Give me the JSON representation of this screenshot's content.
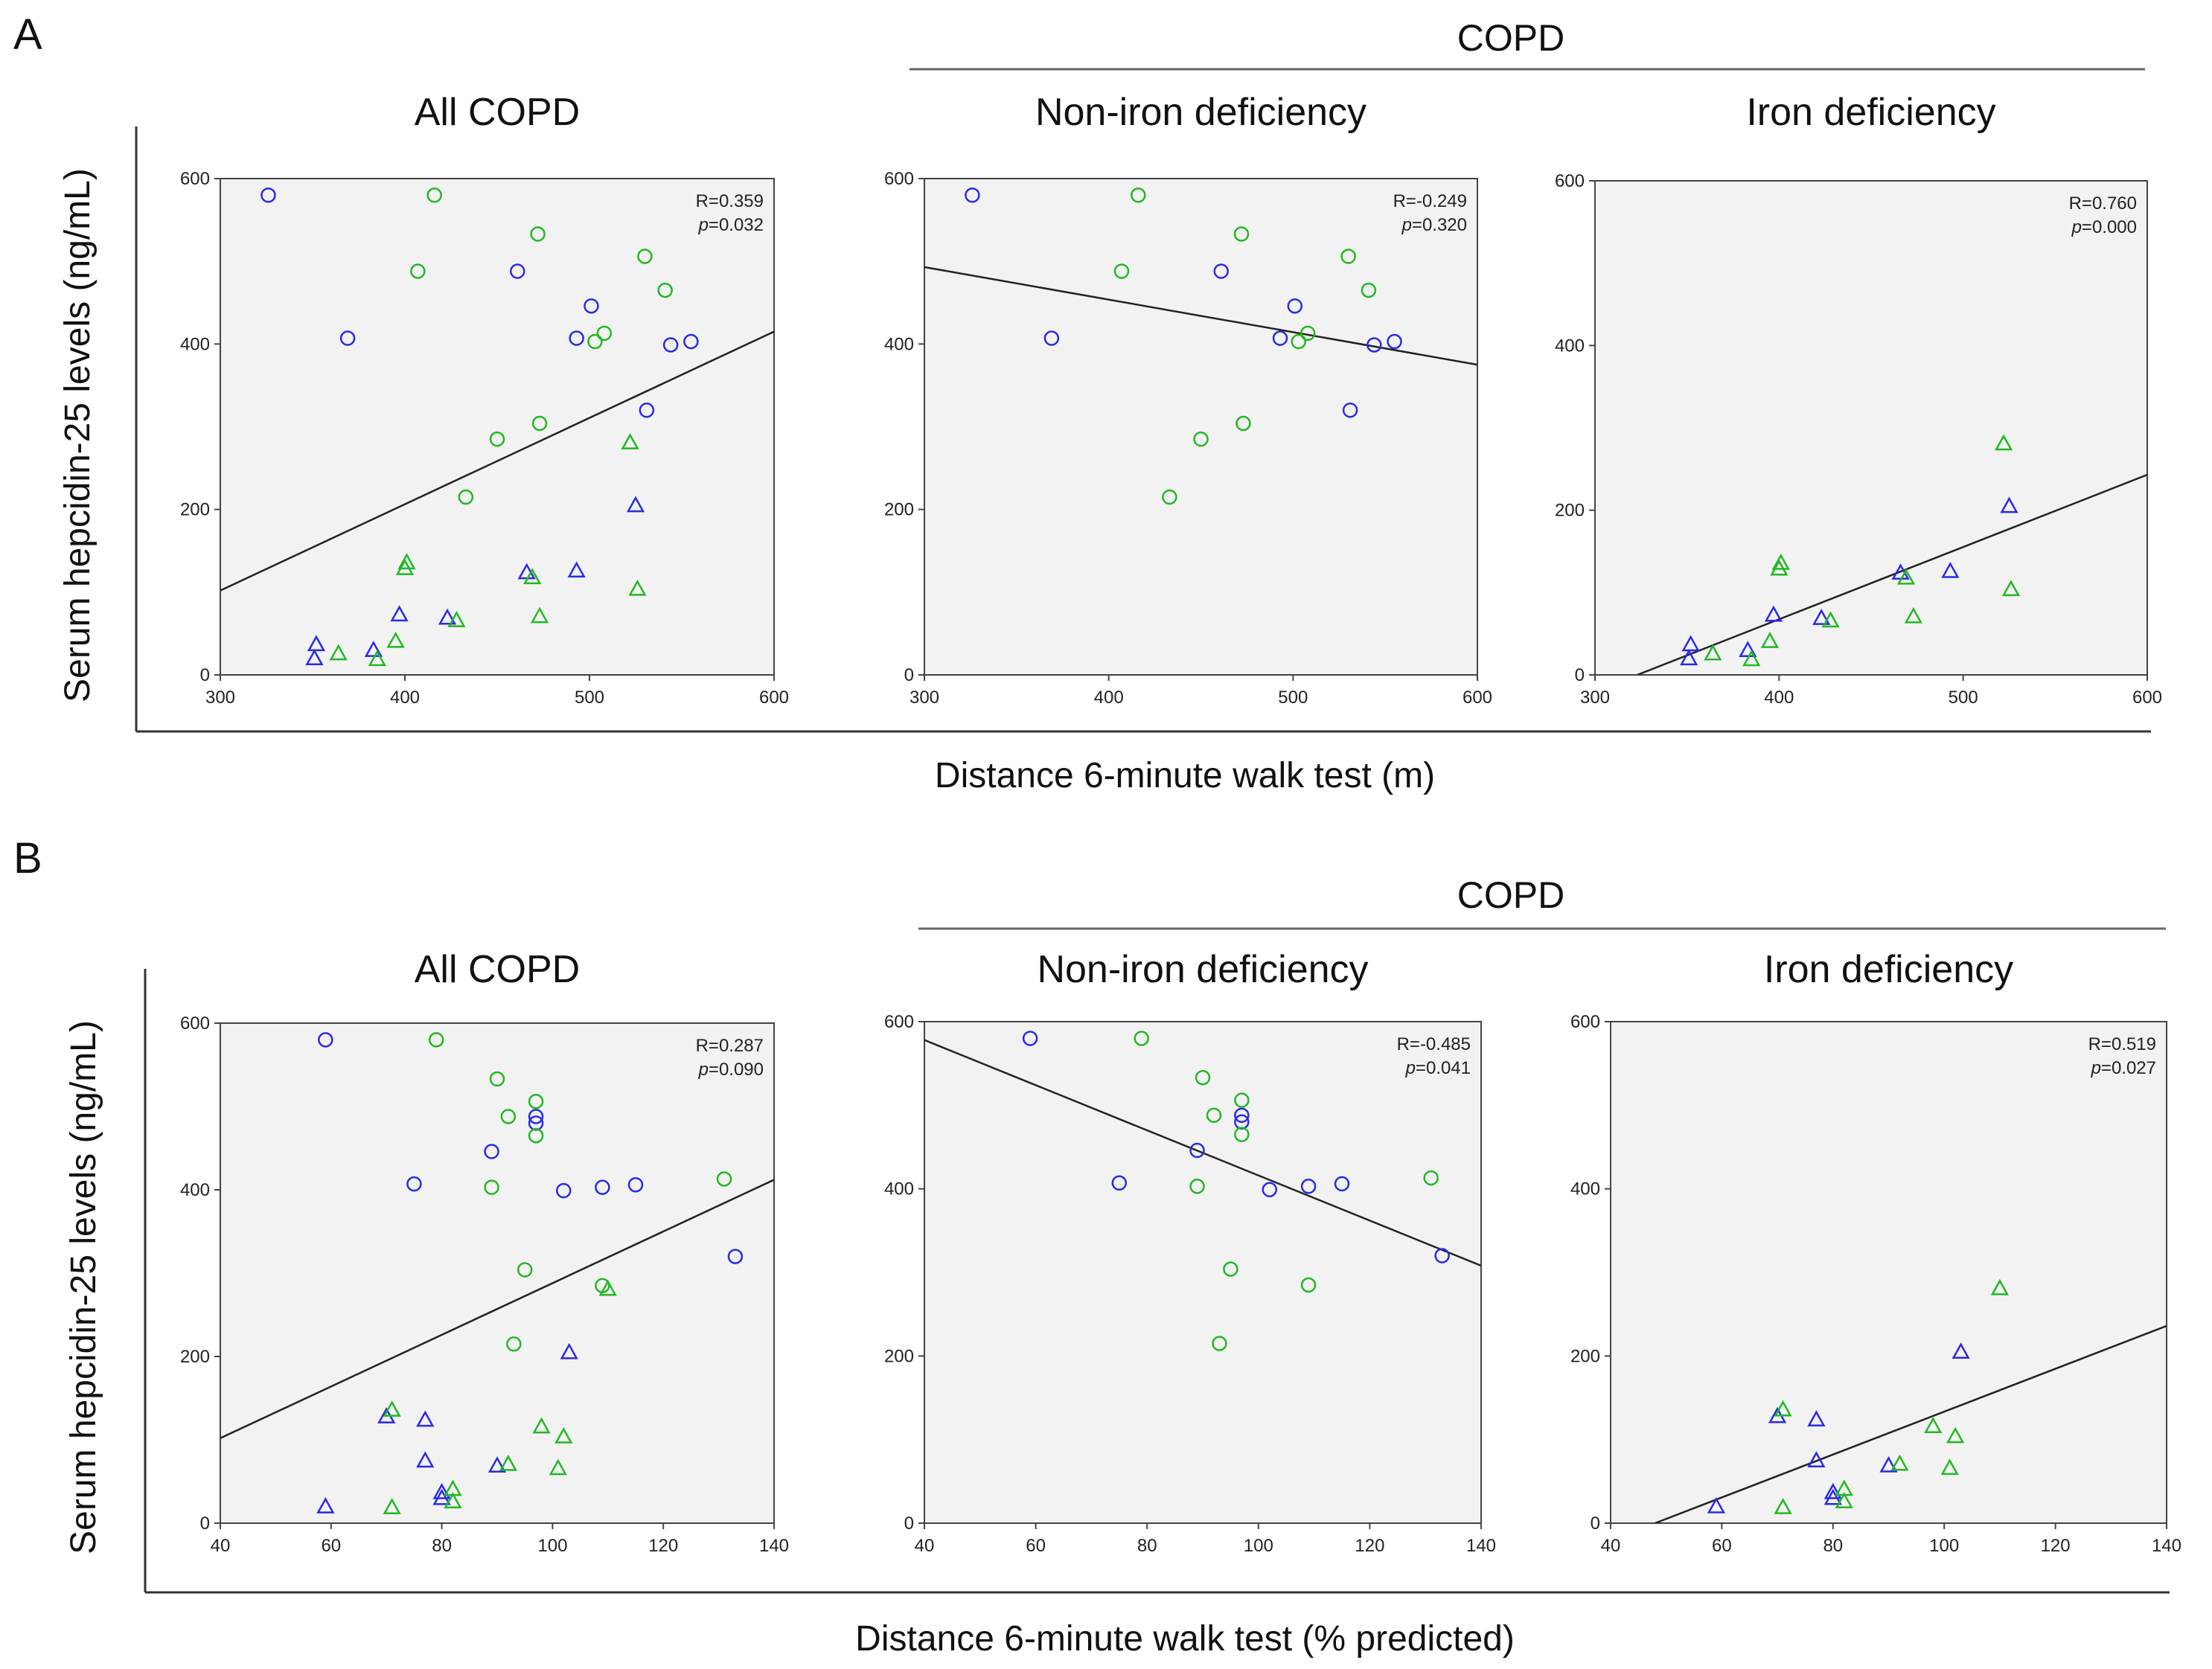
{
  "figure": {
    "panel_labels": [
      "A",
      "B"
    ],
    "group_label": "COPD",
    "ylabel": "Serum hepcidin-25 levels (ng/mL)",
    "colors": {
      "circle_blue": "#2a2ae6",
      "circle_green": "#22b822",
      "plot_bg": "#f2f2f2",
      "line": "#222222"
    }
  },
  "chart_data": [
    {
      "type": "scatter",
      "row": "A",
      "title": "All COPD",
      "xlabel": "Distance 6-minute walk test (m)",
      "ylabel": "Serum hepcidin-25 levels (ng/mL)",
      "xlim": [
        300,
        600
      ],
      "ylim": [
        0,
        600
      ],
      "xticks": [
        "300",
        "400",
        "500",
        "600"
      ],
      "yticks": [
        "0",
        "200",
        "400",
        "600"
      ],
      "stats": {
        "r": "R=0.359",
        "p_label": "p",
        "p_value": "=0.032"
      },
      "fit_line": [
        [
          300,
          102
        ],
        [
          600,
          415
        ]
      ],
      "series": [
        {
          "name": "blue circles",
          "marker": "circle",
          "color": "blue",
          "x": [
            326,
            369,
            461,
            493,
            501,
            531,
            544,
            555
          ],
          "y": [
            580,
            407,
            488,
            407,
            446,
            320,
            399,
            403
          ]
        },
        {
          "name": "green circles",
          "marker": "circle",
          "color": "green",
          "x": [
            407,
            416,
            433,
            450,
            472,
            473,
            503,
            508,
            530,
            541
          ],
          "y": [
            488,
            580,
            215,
            285,
            533,
            304,
            403,
            413,
            506,
            465
          ]
        },
        {
          "name": "blue triangles",
          "marker": "triangle",
          "color": "blue",
          "x": [
            351,
            352,
            383,
            397,
            423,
            466,
            493,
            525
          ],
          "y": [
            20,
            37,
            30,
            73,
            69,
            124,
            126,
            205
          ]
        },
        {
          "name": "green triangles",
          "marker": "triangle",
          "color": "green",
          "x": [
            364,
            385,
            395,
            400,
            401,
            428,
            469,
            473,
            522,
            526
          ],
          "y": [
            26,
            19,
            41,
            129,
            136,
            66,
            118,
            71,
            281,
            104
          ]
        }
      ]
    },
    {
      "type": "scatter",
      "row": "A",
      "title": "Non-iron deficiency",
      "xlabel": "Distance 6-minute walk test (m)",
      "ylabel": "Serum hepcidin-25 levels (ng/mL)",
      "xlim": [
        300,
        600
      ],
      "ylim": [
        0,
        600
      ],
      "xticks": [
        "300",
        "400",
        "500",
        "600"
      ],
      "yticks": [
        "0",
        "200",
        "400",
        "600"
      ],
      "stats": {
        "r": "R=-0.249",
        "p_label": "p",
        "p_value": "=0.320"
      },
      "fit_line": [
        [
          300,
          493
        ],
        [
          600,
          375
        ]
      ],
      "series": [
        {
          "name": "blue circles",
          "marker": "circle",
          "color": "blue",
          "x": [
            326,
            369,
            461,
            493,
            501,
            531,
            544,
            555
          ],
          "y": [
            580,
            407,
            488,
            407,
            446,
            320,
            399,
            403
          ]
        },
        {
          "name": "green circles",
          "marker": "circle",
          "color": "green",
          "x": [
            407,
            416,
            433,
            450,
            472,
            473,
            503,
            508,
            530,
            541
          ],
          "y": [
            488,
            580,
            215,
            285,
            533,
            304,
            403,
            413,
            506,
            465
          ]
        }
      ]
    },
    {
      "type": "scatter",
      "row": "A",
      "title": "Iron deficiency",
      "xlabel": "Distance 6-minute walk test (m)",
      "ylabel": "Serum hepcidin-25 levels (ng/mL)",
      "xlim": [
        300,
        600
      ],
      "ylim": [
        0,
        600
      ],
      "xticks": [
        "300",
        "400",
        "500",
        "600"
      ],
      "yticks": [
        "0",
        "200",
        "400",
        "600"
      ],
      "stats": {
        "r": "R=0.760",
        "p_label": "p",
        "p_value": "=0.000"
      },
      "fit_line": [
        [
          323,
          0
        ],
        [
          600,
          243
        ]
      ],
      "series": [
        {
          "name": "blue triangles",
          "marker": "triangle",
          "color": "blue",
          "x": [
            351,
            352,
            383,
            397,
            423,
            466,
            493,
            525
          ],
          "y": [
            20,
            37,
            30,
            73,
            69,
            124,
            126,
            205
          ]
        },
        {
          "name": "green triangles",
          "marker": "triangle",
          "color": "green",
          "x": [
            364,
            385,
            395,
            400,
            401,
            428,
            469,
            473,
            522,
            526
          ],
          "y": [
            26,
            19,
            41,
            129,
            136,
            66,
            118,
            71,
            281,
            104
          ]
        }
      ]
    },
    {
      "type": "scatter",
      "row": "B",
      "title": "All COPD",
      "xlabel": "Distance 6-minute walk test (% predicted)",
      "ylabel": "Serum hepcidin-25 levels (ng/mL)",
      "xlim": [
        40,
        140
      ],
      "ylim": [
        0,
        600
      ],
      "xticks": [
        "40",
        "60",
        "80",
        "100",
        "120",
        "140"
      ],
      "yticks": [
        "0",
        "200",
        "400",
        "600"
      ],
      "stats": {
        "r": "R=0.287",
        "p_label": "p",
        "p_value": "=0.090"
      },
      "fit_line": [
        [
          40,
          102
        ],
        [
          140,
          412
        ]
      ],
      "series": [
        {
          "name": "blue circles",
          "marker": "circle",
          "color": "blue",
          "x": [
            59,
            75,
            89,
            97,
            97,
            102,
            109,
            115,
            133
          ],
          "y": [
            580,
            407,
            446,
            480,
            488,
            399,
            403,
            406,
            320
          ]
        },
        {
          "name": "green circles",
          "marker": "circle",
          "color": "green",
          "x": [
            79,
            89,
            90,
            92,
            93,
            95,
            97,
            97,
            109,
            131
          ],
          "y": [
            580,
            403,
            533,
            488,
            215,
            304,
            465,
            506,
            285,
            413
          ]
        },
        {
          "name": "blue triangles",
          "marker": "triangle",
          "color": "blue",
          "x": [
            59,
            70,
            77,
            77,
            80,
            80,
            90,
            103
          ],
          "y": [
            20,
            128,
            124,
            75,
            37,
            30,
            69,
            205
          ]
        },
        {
          "name": "green triangles",
          "marker": "triangle",
          "color": "green",
          "x": [
            71,
            71,
            82,
            82,
            92,
            98,
            101,
            102,
            110
          ],
          "y": [
            19,
            136,
            41,
            26,
            71,
            116,
            66,
            104,
            281
          ]
        }
      ]
    },
    {
      "type": "scatter",
      "row": "B",
      "title": "Non-iron deficiency",
      "xlabel": "Distance 6-minute walk test (% predicted)",
      "ylabel": "Serum hepcidin-25 levels (ng/mL)",
      "xlim": [
        40,
        140
      ],
      "ylim": [
        0,
        600
      ],
      "xticks": [
        "40",
        "60",
        "80",
        "100",
        "120",
        "140"
      ],
      "yticks": [
        "0",
        "200",
        "400",
        "600"
      ],
      "stats": {
        "r": "R=-0.485",
        "p_label": "p",
        "p_value": "=0.041"
      },
      "fit_line": [
        [
          40,
          578
        ],
        [
          140,
          308
        ]
      ],
      "series": [
        {
          "name": "blue circles",
          "marker": "circle",
          "color": "blue",
          "x": [
            59,
            75,
            89,
            97,
            97,
            102,
            109,
            115,
            133
          ],
          "y": [
            580,
            407,
            446,
            480,
            488,
            399,
            403,
            406,
            320
          ]
        },
        {
          "name": "green circles",
          "marker": "circle",
          "color": "green",
          "x": [
            79,
            89,
            90,
            92,
            93,
            95,
            97,
            97,
            109,
            131
          ],
          "y": [
            580,
            403,
            533,
            488,
            215,
            304,
            465,
            506,
            285,
            413
          ]
        }
      ]
    },
    {
      "type": "scatter",
      "row": "B",
      "title": "Iron deficiency",
      "xlabel": "Distance 6-minute walk test (% predicted)",
      "ylabel": "Serum hepcidin-25 levels (ng/mL)",
      "xlim": [
        40,
        140
      ],
      "ylim": [
        0,
        600
      ],
      "xticks": [
        "40",
        "60",
        "80",
        "100",
        "120",
        "140"
      ],
      "yticks": [
        "0",
        "200",
        "400",
        "600"
      ],
      "stats": {
        "r": "R=0.519",
        "p_label": "p",
        "p_value": "=0.027"
      },
      "fit_line": [
        [
          48,
          0
        ],
        [
          140,
          236
        ]
      ],
      "series": [
        {
          "name": "blue triangles",
          "marker": "triangle",
          "color": "blue",
          "x": [
            59,
            70,
            77,
            77,
            80,
            80,
            90,
            103
          ],
          "y": [
            20,
            128,
            124,
            75,
            37,
            30,
            69,
            205
          ]
        },
        {
          "name": "green triangles",
          "marker": "triangle",
          "color": "green",
          "x": [
            71,
            71,
            82,
            82,
            92,
            98,
            101,
            102,
            110
          ],
          "y": [
            19,
            136,
            41,
            26,
            71,
            116,
            66,
            104,
            281
          ]
        }
      ]
    }
  ]
}
